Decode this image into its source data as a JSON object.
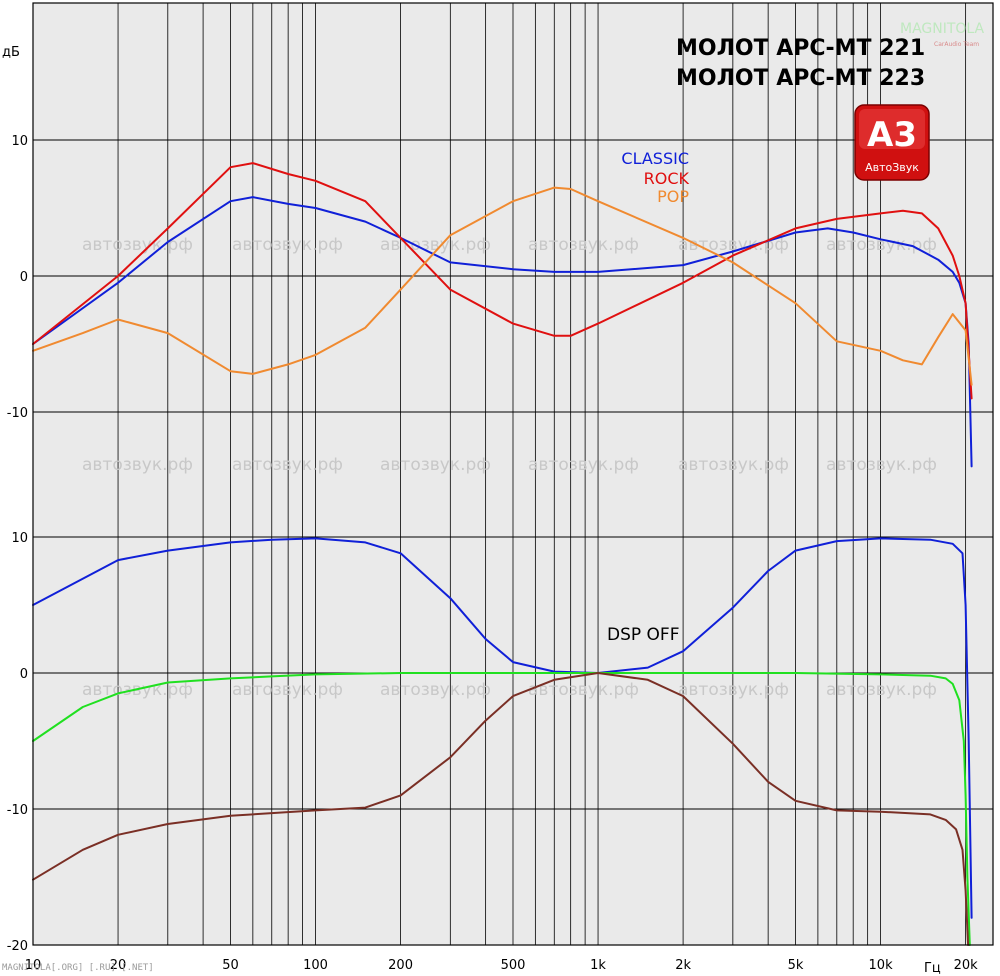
{
  "header": {
    "title_line1": "МОЛОТ АРС-МТ 221",
    "title_line2": "МОЛОТ АРС-МТ 223",
    "brand_top": "MAGNITOLA",
    "brand_sub": "CarAudio Team",
    "logo_main": "A3",
    "logo_text": "АвтоЗвук"
  },
  "watermark": {
    "text": "автозвук.рф"
  },
  "footer": {
    "text": "MAGNITOLA[.ORG] [.RU] [.NET]"
  },
  "colors": {
    "classic": "#1020d8",
    "rock": "#e01010",
    "pop": "#f08a30",
    "flat": "#20e020",
    "cut": "#7a2f25",
    "grid": "#000000",
    "bg": "#eaeaea"
  },
  "chart_data": [
    {
      "type": "line",
      "panel": "top",
      "ylabel": "дБ",
      "xscale": "log",
      "xlim": [
        10,
        25000
      ],
      "ylim": [
        -20,
        15
      ],
      "yticks": [
        10,
        0,
        -10
      ],
      "series": [
        {
          "name": "CLASSIC",
          "color": "#1020d8",
          "x": [
            10,
            20,
            30,
            50,
            60,
            80,
            100,
            150,
            200,
            300,
            500,
            700,
            1000,
            2000,
            3000,
            5000,
            6500,
            8000,
            10000,
            13000,
            16000,
            18000,
            19000,
            20000,
            20500,
            21000
          ],
          "y": [
            -5,
            -0.5,
            2.5,
            5.5,
            5.8,
            5.3,
            5.0,
            4.0,
            2.8,
            1.0,
            0.5,
            0.3,
            0.3,
            0.8,
            1.8,
            3.2,
            3.5,
            3.2,
            2.7,
            2.2,
            1.2,
            0.3,
            -0.5,
            -2,
            -5,
            -14
          ]
        },
        {
          "name": "ROCK",
          "color": "#e01010",
          "x": [
            10,
            20,
            30,
            50,
            60,
            80,
            100,
            150,
            200,
            300,
            500,
            700,
            800,
            1000,
            2000,
            3000,
            5000,
            7000,
            10000,
            12000,
            14000,
            16000,
            18000,
            19000,
            20000,
            21000
          ],
          "y": [
            -5,
            0,
            3.5,
            8.0,
            8.3,
            7.5,
            7.0,
            5.5,
            2.8,
            -1.0,
            -3.5,
            -4.4,
            -4.4,
            -3.5,
            -0.5,
            1.5,
            3.5,
            4.2,
            4.6,
            4.8,
            4.6,
            3.5,
            1.5,
            0,
            -2,
            -9
          ]
        },
        {
          "name": "POP",
          "color": "#f08a30",
          "x": [
            10,
            15,
            20,
            30,
            50,
            60,
            80,
            100,
            150,
            200,
            300,
            500,
            700,
            800,
            1000,
            2000,
            3000,
            5000,
            7000,
            10000,
            12000,
            14000,
            16000,
            18000,
            20000,
            21000
          ],
          "y": [
            -5.5,
            -4.2,
            -3.2,
            -4.2,
            -7.0,
            -7.2,
            -6.5,
            -5.8,
            -3.8,
            -1.0,
            3.0,
            5.5,
            6.5,
            6.4,
            5.5,
            2.8,
            1.0,
            -2.0,
            -4.8,
            -5.5,
            -6.2,
            -6.5,
            -4.5,
            -2.8,
            -4.0,
            -8
          ]
        }
      ]
    },
    {
      "type": "line",
      "panel": "bottom",
      "xscale": "log",
      "xlim": [
        10,
        25000
      ],
      "ylim": [
        -20,
        15
      ],
      "yticks": [
        10,
        0,
        -10,
        -20
      ],
      "xlabel": "Гц",
      "xticks": [
        "10",
        "20",
        "50",
        "100",
        "200",
        "500",
        "1k",
        "2k",
        "5k",
        "10k",
        "20k"
      ],
      "annotation": "DSP OFF",
      "series": [
        {
          "color": "#1020d8",
          "x": [
            10,
            20,
            30,
            50,
            70,
            100,
            150,
            200,
            300,
            400,
            500,
            700,
            1000,
            1500,
            2000,
            3000,
            4000,
            5000,
            7000,
            10000,
            15000,
            18000,
            19500,
            20000,
            20500,
            21000
          ],
          "y": [
            5.0,
            8.3,
            9.0,
            9.6,
            9.8,
            9.9,
            9.6,
            8.8,
            5.5,
            2.5,
            0.8,
            0.1,
            0.0,
            0.4,
            1.6,
            4.8,
            7.5,
            9.0,
            9.7,
            9.9,
            9.8,
            9.5,
            8.8,
            5,
            -5,
            -18
          ]
        },
        {
          "color": "#20e020",
          "x": [
            10,
            15,
            20,
            30,
            50,
            70,
            100,
            200,
            500,
            1000,
            5000,
            10000,
            15000,
            17000,
            18000,
            19000,
            19700,
            20000,
            20300,
            20700
          ],
          "y": [
            -5.0,
            -2.5,
            -1.5,
            -0.7,
            -0.4,
            -0.25,
            -0.1,
            0,
            0,
            0,
            0,
            -0.1,
            -0.2,
            -0.4,
            -0.8,
            -2,
            -5,
            -9,
            -15,
            -20
          ]
        },
        {
          "color": "#7a2f25",
          "x": [
            10,
            15,
            20,
            30,
            50,
            70,
            100,
            150,
            200,
            300,
            400,
            500,
            700,
            1000,
            1500,
            2000,
            3000,
            4000,
            5000,
            7000,
            10000,
            15000,
            17000,
            18500,
            19500,
            20000,
            20400
          ],
          "y": [
            -15.2,
            -13.0,
            -11.9,
            -11.1,
            -10.5,
            -10.3,
            -10.1,
            -9.9,
            -9.0,
            -6.2,
            -3.5,
            -1.7,
            -0.5,
            0,
            -0.5,
            -1.7,
            -5.2,
            -8.0,
            -9.4,
            -10.1,
            -10.2,
            -10.4,
            -10.8,
            -11.5,
            -13,
            -16,
            -20
          ]
        }
      ]
    }
  ],
  "legend": [
    {
      "label": "CLASSIC",
      "color": "#1020d8"
    },
    {
      "label": "ROCK",
      "color": "#e01010"
    },
    {
      "label": "POP",
      "color": "#f08a30"
    }
  ]
}
